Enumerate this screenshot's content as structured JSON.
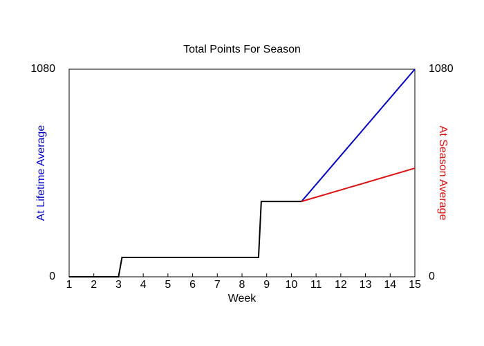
{
  "chart_data": {
    "type": "line",
    "title": "Total Points For Season",
    "xlabel": "Week",
    "ylabel": "At Lifetime Average",
    "ylabel_color": "#0000cc",
    "y2label": "At Season Average",
    "y2label_color": "#dd1111",
    "xlim": [
      1,
      15
    ],
    "xticks": [
      1,
      2,
      3,
      4,
      5,
      6,
      7,
      8,
      9,
      10,
      11,
      12,
      13,
      14,
      15
    ],
    "ylim": [
      0,
      1080
    ],
    "yticks": [
      0,
      1080
    ],
    "y2lim": [
      0,
      1080
    ],
    "y2ticks": [
      0,
      1080
    ],
    "series": [
      {
        "color": "#000000",
        "x": [
          1,
          3,
          3.14,
          8.67,
          8.78,
          10.41
        ],
        "values": [
          0,
          0,
          101,
          101,
          392,
          392
        ]
      },
      {
        "color": "#0000cc",
        "x": [
          10.41,
          15
        ],
        "values": [
          392,
          1080
        ]
      },
      {
        "color": "#dd1111",
        "axis": "y2",
        "x": [
          10.41,
          15
        ],
        "values": [
          392,
          565
        ]
      }
    ]
  }
}
